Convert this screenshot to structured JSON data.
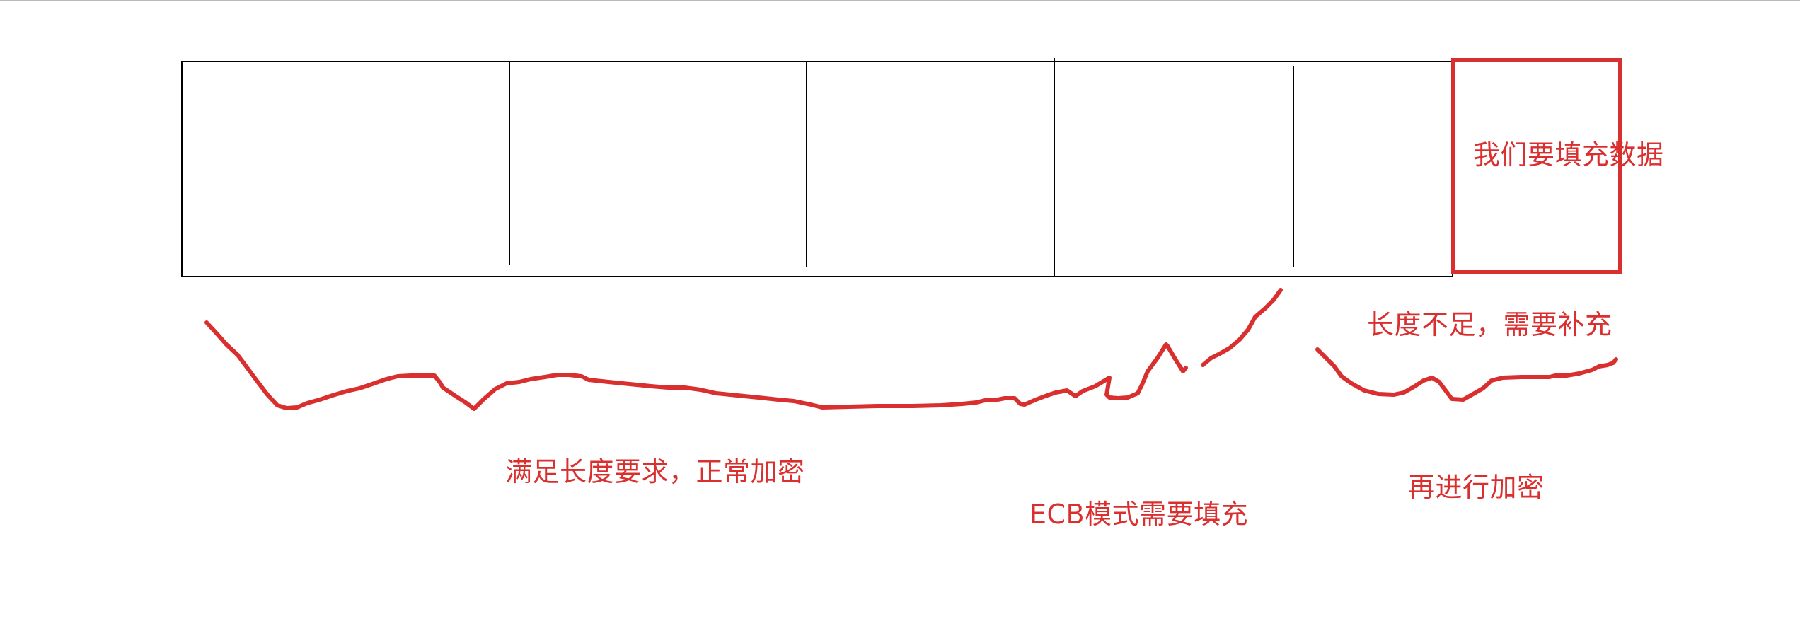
{
  "annotations": {
    "fill_data": "我们要填充数据",
    "length_insufficient": "长度不足，需要补充",
    "normal_encrypt": "满足长度要求，正常加密",
    "ecb_padding": "ECB模式需要填充",
    "then_encrypt": "再进行加密"
  },
  "colors": {
    "ink": "#000000",
    "marker": "#d9302f"
  }
}
